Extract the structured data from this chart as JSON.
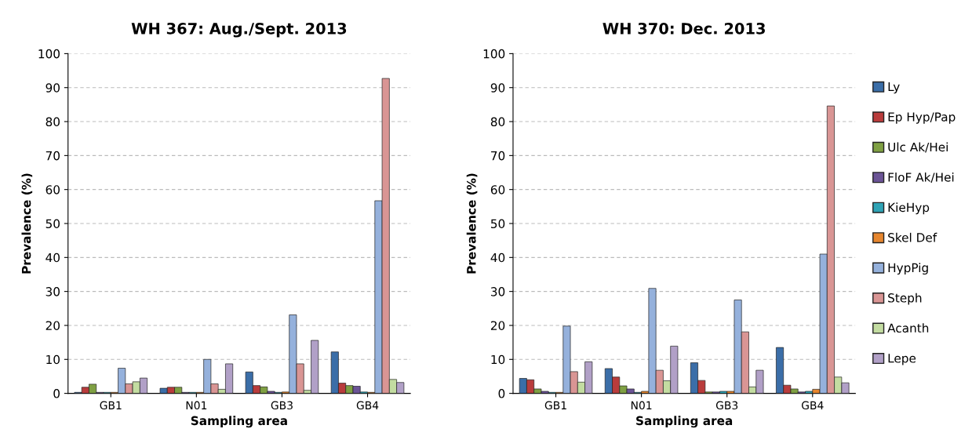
{
  "chart_data": [
    {
      "type": "bar",
      "title": "WH 367: Aug./Sept. 2013",
      "xlabel": "Sampling area",
      "ylabel": "Prevalence (%)",
      "categories": [
        "GB1",
        "N01",
        "GB3",
        "GB4"
      ],
      "ylim": [
        0,
        100
      ],
      "yticks": [
        0,
        10,
        20,
        30,
        40,
        50,
        60,
        70,
        80,
        90,
        100
      ],
      "grid": "y",
      "series": [
        {
          "color": "#3b6ea8",
          "values": [
            0.3,
            1.5,
            6.3,
            12.2
          ]
        },
        {
          "color": "#b93c3c",
          "values": [
            1.8,
            1.8,
            2.3,
            3.0
          ]
        },
        {
          "color": "#7fa043",
          "values": [
            2.7,
            1.8,
            1.9,
            2.3
          ]
        },
        {
          "color": "#6b5496",
          "values": [
            0.3,
            0.3,
            0.6,
            2.1
          ]
        },
        {
          "color": "#2fa3b5",
          "values": [
            0.3,
            0.3,
            0.3,
            0.4
          ]
        },
        {
          "color": "#e6862e",
          "values": [
            0.3,
            0.3,
            0.4,
            0.3
          ]
        },
        {
          "color": "#95b1dc",
          "values": [
            7.4,
            10.0,
            23.1,
            56.7
          ]
        },
        {
          "color": "#d99594",
          "values": [
            2.8,
            2.8,
            8.7,
            92.7
          ]
        },
        {
          "color": "#c3dca1",
          "values": [
            3.4,
            1.2,
            0.9,
            4.1
          ]
        },
        {
          "color": "#b1a0c7",
          "values": [
            4.5,
            8.7,
            15.6,
            3.2
          ]
        }
      ]
    },
    {
      "type": "bar",
      "title": "WH 370: Dec. 2013",
      "xlabel": "Sampling area",
      "ylabel": "Prevalence (%)",
      "categories": [
        "GB1",
        "N01",
        "GB3",
        "GB4"
      ],
      "ylim": [
        0,
        100
      ],
      "yticks": [
        0,
        10,
        20,
        30,
        40,
        50,
        60,
        70,
        80,
        90,
        100
      ],
      "grid": "y",
      "legend": "right",
      "series": [
        {
          "name": "Ly",
          "color": "#3b6ea8",
          "values": [
            4.4,
            7.3,
            9.0,
            13.5
          ]
        },
        {
          "name": "Ep Hyp/Pap",
          "color": "#b93c3c",
          "values": [
            4.0,
            4.8,
            3.8,
            2.4
          ]
        },
        {
          "name": "Ulc Ak/Hei",
          "color": "#7fa043",
          "values": [
            1.3,
            2.2,
            0.4,
            1.3
          ]
        },
        {
          "name": "FloF Ak/Hei",
          "color": "#6b5496",
          "values": [
            0.6,
            1.3,
            0.4,
            0.4
          ]
        },
        {
          "name": "KieHyp",
          "color": "#2fa3b5",
          "values": [
            0.3,
            0.3,
            0.6,
            0.6
          ]
        },
        {
          "name": "Skel Def",
          "color": "#e6862e",
          "values": [
            0.3,
            0.6,
            0.6,
            1.2
          ]
        },
        {
          "name": "HypPig",
          "color": "#95b1dc",
          "values": [
            19.8,
            30.9,
            27.5,
            41.0
          ]
        },
        {
          "name": "Steph",
          "color": "#d99594",
          "values": [
            6.4,
            6.8,
            18.1,
            84.6
          ]
        },
        {
          "name": "Acanth",
          "color": "#c3dca1",
          "values": [
            3.3,
            3.7,
            1.9,
            4.8
          ]
        },
        {
          "name": "Lepe",
          "color": "#b1a0c7",
          "values": [
            9.3,
            13.9,
            6.8,
            3.1
          ]
        }
      ]
    }
  ]
}
